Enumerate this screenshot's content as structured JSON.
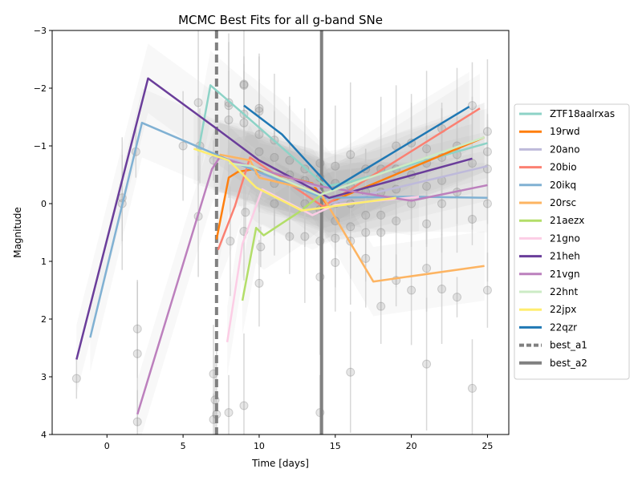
{
  "chart_data": {
    "type": "line",
    "title": "MCMC Best Fits for all g-band SNe",
    "xlabel": "Time [days]",
    "ylabel": "Magnitude",
    "xlim": [
      -3.6,
      26.4
    ],
    "ylim": [
      4,
      -3
    ],
    "y_inverted": true,
    "xticks": [
      0,
      5,
      10,
      15,
      20,
      25
    ],
    "yticks": [
      -3,
      -2,
      -1,
      0,
      1,
      2,
      3,
      4
    ],
    "grid": false,
    "legend_position": "right-outside",
    "series": [
      {
        "name": "ZTF18aalrxas",
        "color": "#8dd3c7",
        "x": [
          6.0,
          6.8,
          9.0,
          14.4,
          16.0,
          25.0
        ],
        "y": [
          -0.9,
          -2.05,
          -1.55,
          -0.3,
          -0.38,
          -1.05
        ]
      },
      {
        "name": "19rwd",
        "color": "#ff7f0e",
        "x": [
          7.2,
          8.0,
          8.6,
          9.7,
          13.5,
          14.4,
          24.8
        ],
        "y": [
          0.62,
          -0.45,
          -0.55,
          -0.6,
          -0.35,
          0.0,
          -1.15
        ]
      },
      {
        "name": "20ano",
        "color": "#bebada",
        "x": [
          7.0,
          8.5,
          10.5,
          13.8,
          14.6,
          25.0
        ],
        "y": [
          -0.8,
          -0.75,
          -0.45,
          -0.3,
          0.0,
          -0.65
        ]
      },
      {
        "name": "20bio",
        "color": "#fb8072",
        "x": [
          7.3,
          8.4,
          9.4,
          14.2,
          24.5
        ],
        "y": [
          0.8,
          0.05,
          -0.8,
          0.05,
          -1.65
        ]
      },
      {
        "name": "20ikq",
        "color": "#80b1d3",
        "x": [
          -1.1,
          2.3,
          7.8,
          9.0,
          14.2,
          20.0,
          25.0
        ],
        "y": [
          2.32,
          -1.4,
          -0.78,
          -0.65,
          -0.1,
          -0.12,
          -0.1
        ]
      },
      {
        "name": "20rsc",
        "color": "#fdb462",
        "x": [
          7.4,
          9.4,
          10.0,
          14.0,
          17.5,
          24.8
        ],
        "y": [
          -0.85,
          -0.75,
          -0.45,
          -0.2,
          1.35,
          1.08
        ]
      },
      {
        "name": "21aezx",
        "color": "#b3de69",
        "x": [
          8.9,
          9.8,
          10.3,
          12.6,
          14.3
        ],
        "y": [
          1.68,
          0.42,
          0.55,
          0.15,
          -0.2
        ]
      },
      {
        "name": "21gno",
        "color": "#fccde5",
        "x": [
          7.9,
          8.9,
          10.2,
          13.5,
          15.0,
          20.5
        ],
        "y": [
          2.4,
          0.7,
          -0.25,
          0.2,
          0.02,
          -0.12
        ]
      },
      {
        "name": "21heh",
        "color": "#6a3d9a",
        "x": [
          -2.0,
          2.7,
          7.2,
          10.0,
          14.6,
          24.0
        ],
        "y": [
          2.7,
          -2.17,
          -1.3,
          -0.75,
          -0.1,
          -0.78
        ]
      },
      {
        "name": "21vgn",
        "color": "#bc80bd",
        "x": [
          2.0,
          6.9,
          7.4,
          14.0,
          20.0,
          25.0
        ],
        "y": [
          3.65,
          -0.6,
          -0.8,
          -0.3,
          -0.05,
          -0.32
        ]
      },
      {
        "name": "22hnt",
        "color": "#ccebc5",
        "x": [
          8.0,
          9.5,
          14.0,
          24.8
        ],
        "y": [
          -0.7,
          -0.65,
          -0.15,
          -1.15
        ]
      },
      {
        "name": "22jpx",
        "color": "#ffed6f",
        "x": [
          5.7,
          8.0,
          9.8,
          12.8,
          19.0
        ],
        "y": [
          -0.95,
          -0.75,
          -0.28,
          0.12,
          -0.1
        ]
      },
      {
        "name": "22qzr",
        "color": "#1f78b4",
        "x": [
          9.0,
          11.5,
          14.8,
          23.8
        ],
        "y": [
          -1.7,
          -1.2,
          -0.25,
          -1.68
        ]
      }
    ],
    "vlines": [
      {
        "name": "best_a1",
        "x": 7.2,
        "style": "dashed",
        "color": "#808080"
      },
      {
        "name": "best_a2",
        "x": 14.1,
        "style": "solid",
        "color": "#808080"
      }
    ],
    "observations": {
      "x": [
        -2.0,
        1.0,
        1.0,
        1.9,
        2.0,
        2.0,
        2.0,
        5.0,
        6.0,
        6.1,
        6.0,
        7.0,
        7.1,
        7.2,
        7.0,
        7.0,
        8.0,
        8.0,
        8.1,
        8.0,
        8.0,
        9.0,
        9.0,
        9.0,
        9.0,
        9.1,
        9.0,
        9.0,
        10.0,
        10.0,
        10.0,
        10.0,
        10.0,
        10.1,
        10.0,
        11.0,
        11.0,
        11.0,
        11.0,
        11.0,
        12.0,
        12.0,
        12.0,
        13.0,
        13.0,
        13.0,
        13.0,
        14.0,
        14.0,
        14.0,
        14.0,
        14.0,
        14.0,
        14.0,
        15.0,
        15.0,
        15.0,
        15.0,
        15.0,
        15.0,
        16.0,
        16.0,
        16.0,
        16.0,
        16.0,
        16.0,
        17.0,
        17.0,
        17.0,
        17.0,
        17.0,
        18.0,
        18.0,
        18.0,
        18.0,
        18.0,
        19.0,
        19.0,
        19.0,
        19.0,
        19.0,
        20.0,
        20.0,
        20.0,
        20.0,
        21.0,
        21.0,
        21.0,
        21.0,
        21.0,
        21.0,
        22.0,
        22.0,
        22.0,
        22.0,
        22.0,
        23.0,
        23.0,
        23.0,
        23.0,
        24.0,
        24.0,
        24.0,
        24.0,
        25.0,
        25.0,
        25.0,
        25.0,
        25.0
      ],
      "y": [
        3.03,
        -0.1,
        0.0,
        -0.9,
        2.17,
        2.6,
        3.78,
        -1.0,
        -1.75,
        -1.0,
        0.22,
        -0.75,
        3.4,
        3.65,
        3.74,
        2.95,
        -1.7,
        -1.75,
        0.65,
        -1.45,
        3.62,
        -2.05,
        -2.07,
        -1.55,
        -1.4,
        0.15,
        0.48,
        3.5,
        -1.6,
        -1.65,
        -1.2,
        -0.9,
        -0.55,
        0.75,
        1.38,
        -1.1,
        -0.8,
        -0.45,
        -0.35,
        0.0,
        -0.75,
        -0.5,
        0.57,
        -0.6,
        -0.4,
        0.0,
        0.57,
        -0.7,
        -0.45,
        -0.2,
        0.1,
        0.65,
        1.27,
        3.62,
        -0.65,
        -0.35,
        0.0,
        0.3,
        0.6,
        1.02,
        -0.85,
        -0.3,
        0.0,
        0.4,
        0.65,
        2.92,
        -0.6,
        -0.2,
        0.2,
        0.5,
        0.95,
        -0.6,
        -0.2,
        0.2,
        0.5,
        1.78,
        -1.0,
        -0.6,
        -0.25,
        0.3,
        1.33,
        -1.05,
        -0.5,
        0.0,
        1.5,
        -0.95,
        -0.7,
        -0.3,
        0.35,
        1.12,
        2.78,
        -1.3,
        -0.8,
        -0.4,
        0.0,
        1.48,
        -1.0,
        -0.85,
        -0.2,
        1.62,
        -1.7,
        -0.7,
        0.27,
        3.2,
        -1.25,
        -0.9,
        -0.6,
        0.0,
        1.5
      ]
    }
  }
}
